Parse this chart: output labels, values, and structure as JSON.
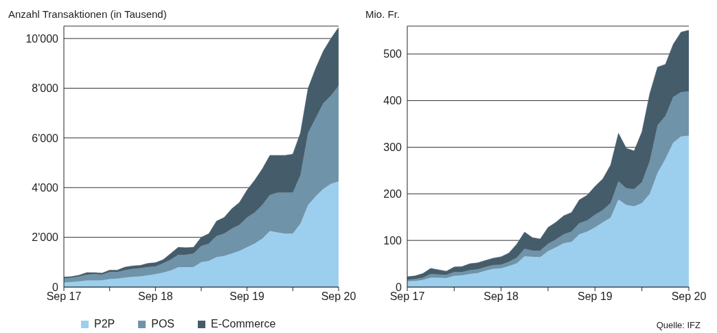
{
  "chart_data": [
    {
      "type": "area",
      "ylabel": "Anzahl Transaktionen (in Tausend)",
      "stacked": true,
      "grid": "y",
      "legend": "bottom",
      "xlim": [
        "2017-09",
        "2020-09"
      ],
      "xticks": [
        {
          "value": "2017-09",
          "label": "Sep 17"
        },
        {
          "value": "2018-03",
          "label": null
        },
        {
          "value": "2018-09",
          "label": "Sep 18"
        },
        {
          "value": "2019-03",
          "label": null
        },
        {
          "value": "2019-09",
          "label": "Sep 19"
        },
        {
          "value": "2020-03",
          "label": null
        },
        {
          "value": "2020-09",
          "label": "Sep 20"
        }
      ],
      "ylim": [
        0,
        10500
      ],
      "yticks": [
        0,
        {
          "value": 2000,
          "label": "2'000"
        },
        {
          "value": 4000,
          "label": "4'000"
        },
        {
          "value": 6000,
          "label": "6'000"
        },
        {
          "value": 8000,
          "label": "8'000"
        },
        {
          "value": 10000,
          "label": "10'000"
        }
      ],
      "x": [
        "2017-09",
        "2017-10",
        "2017-11",
        "2017-12",
        "2018-01",
        "2018-02",
        "2018-03",
        "2018-04",
        "2018-05",
        "2018-06",
        "2018-07",
        "2018-08",
        "2018-09",
        "2018-10",
        "2018-11",
        "2018-12",
        "2019-01",
        "2019-02",
        "2019-03",
        "2019-04",
        "2019-05",
        "2019-06",
        "2019-07",
        "2019-08",
        "2019-09",
        "2019-10",
        "2019-11",
        "2019-12",
        "2020-01",
        "2020-02",
        "2020-03",
        "2020-04",
        "2020-05",
        "2020-06",
        "2020-07",
        "2020-08",
        "2020-09"
      ],
      "series": [
        {
          "name": "P2P",
          "color": "#9ccfee",
          "values": [
            180,
            200,
            230,
            260,
            260,
            270,
            320,
            340,
            380,
            410,
            430,
            470,
            520,
            580,
            660,
            800,
            800,
            800,
            1000,
            1050,
            1200,
            1250,
            1350,
            1450,
            1600,
            1750,
            1950,
            2250,
            2200,
            2150,
            2150,
            2550,
            3300,
            3650,
            3950,
            4150,
            4250
          ]
        },
        {
          "name": "POS",
          "color": "#6f93a8",
          "values": [
            170,
            170,
            190,
            240,
            260,
            230,
            280,
            260,
            300,
            320,
            330,
            330,
            310,
            370,
            440,
            500,
            500,
            550,
            650,
            700,
            850,
            900,
            1000,
            1050,
            1200,
            1250,
            1350,
            1450,
            1600,
            1650,
            1650,
            1950,
            2900,
            3150,
            3450,
            3550,
            3850
          ]
        },
        {
          "name": "E-Commerce",
          "color": "#455c6b",
          "values": [
            50,
            50,
            60,
            80,
            60,
            60,
            80,
            80,
            120,
            120,
            110,
            150,
            150,
            150,
            250,
            300,
            280,
            250,
            350,
            400,
            600,
            650,
            800,
            900,
            1100,
            1300,
            1450,
            1600,
            1500,
            1500,
            1550,
            1700,
            1800,
            2000,
            2100,
            2300,
            2350
          ]
        }
      ]
    },
    {
      "type": "area",
      "ylabel": "Mio. Fr.",
      "stacked": true,
      "grid": "y",
      "annotations": [
        "Quelle: IFZ"
      ],
      "xlim": [
        "2017-09",
        "2020-09"
      ],
      "xticks": [
        {
          "value": "2017-09",
          "label": "Sep 17"
        },
        {
          "value": "2018-03",
          "label": null
        },
        {
          "value": "2018-09",
          "label": "Sep 18"
        },
        {
          "value": "2019-03",
          "label": null
        },
        {
          "value": "2019-09",
          "label": "Sep 19"
        },
        {
          "value": "2020-03",
          "label": null
        },
        {
          "value": "2020-09",
          "label": "Sep 20"
        }
      ],
      "ylim": [
        0,
        560
      ],
      "yticks": [
        0,
        100,
        200,
        300,
        400,
        500
      ],
      "x": [
        "2017-09",
        "2017-10",
        "2017-11",
        "2017-12",
        "2018-01",
        "2018-02",
        "2018-03",
        "2018-04",
        "2018-05",
        "2018-06",
        "2018-07",
        "2018-08",
        "2018-09",
        "2018-10",
        "2018-11",
        "2018-12",
        "2019-01",
        "2019-02",
        "2019-03",
        "2019-04",
        "2019-05",
        "2019-06",
        "2019-07",
        "2019-08",
        "2019-09",
        "2019-10",
        "2019-11",
        "2019-12",
        "2020-01",
        "2020-02",
        "2020-03",
        "2020-04",
        "2020-05",
        "2020-06",
        "2020-07",
        "2020-08",
        "2020-09"
      ],
      "series": [
        {
          "color": "#9ccfee",
          "values": [
            12,
            13,
            15,
            20,
            20,
            19,
            24,
            25,
            28,
            30,
            35,
            39,
            40,
            45,
            51,
            66,
            65,
            64,
            77,
            85,
            94,
            97,
            113,
            119,
            128,
            139,
            149,
            188,
            176,
            173,
            180,
            200,
            245,
            275,
            310,
            323,
            325
          ]
        },
        {
          "color": "#6f93a8",
          "values": [
            4,
            4,
            5,
            8,
            7,
            7,
            8,
            7,
            8,
            8,
            8,
            8,
            8,
            9,
            12,
            16,
            13,
            14,
            16,
            17,
            19,
            22,
            24,
            24,
            27,
            26,
            31,
            39,
            36,
            37,
            45,
            70,
            102,
            92,
            98,
            95,
            95
          ]
        },
        {
          "color": "#455c6b",
          "values": [
            6,
            7,
            9,
            12,
            10,
            8,
            11,
            12,
            14,
            14,
            14,
            15,
            17,
            19,
            29,
            36,
            28,
            25,
            35,
            37,
            40,
            41,
            50,
            54,
            61,
            67,
            82,
            103,
            86,
            82,
            108,
            145,
            125,
            111,
            113,
            129,
            131
          ]
        }
      ]
    }
  ]
}
